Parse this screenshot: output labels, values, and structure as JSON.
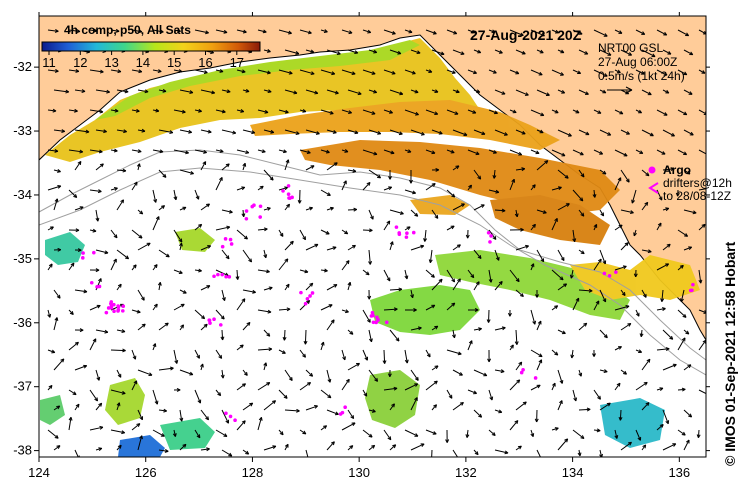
{
  "title": "27-Aug-2021 20Z",
  "colorbar": {
    "label": "4h comp, p50, All Sats",
    "ticks": [
      "11",
      "12",
      "13",
      "14",
      "15",
      "16",
      "17"
    ],
    "stops": [
      "#0a1a8c",
      "#1f5fd6",
      "#22b8d8",
      "#3fd68a",
      "#b8e61a",
      "#f2d21a",
      "#f0a010",
      "#d25a08",
      "#8a1a08"
    ]
  },
  "current_info": {
    "model": "NRT00 GSL",
    "time": "27-Aug 06:00Z",
    "scale": "0.5m/s (1kt 24h)"
  },
  "legend": {
    "argo": "Argo",
    "drifters_line1": "drifters@12h",
    "drifters_line2": "to 28/08-12Z"
  },
  "axes": {
    "x_ticks": [
      "124",
      "126",
      "128",
      "130",
      "132",
      "134",
      "136"
    ],
    "y_ticks": [
      "-32",
      "-33",
      "-34",
      "-35",
      "-36",
      "-37",
      "-38"
    ],
    "lon_range": [
      124,
      136.5
    ],
    "lat_range": [
      -38.1,
      -31.2
    ]
  },
  "copyright": "© IMOS 01-Sep-2021 12:58 Hobart",
  "colors": {
    "land": "#ffcc99",
    "coast": "#000000",
    "bathy": "#a0a0a0",
    "argo": "#ff00ff",
    "arrow": "#000000"
  }
}
